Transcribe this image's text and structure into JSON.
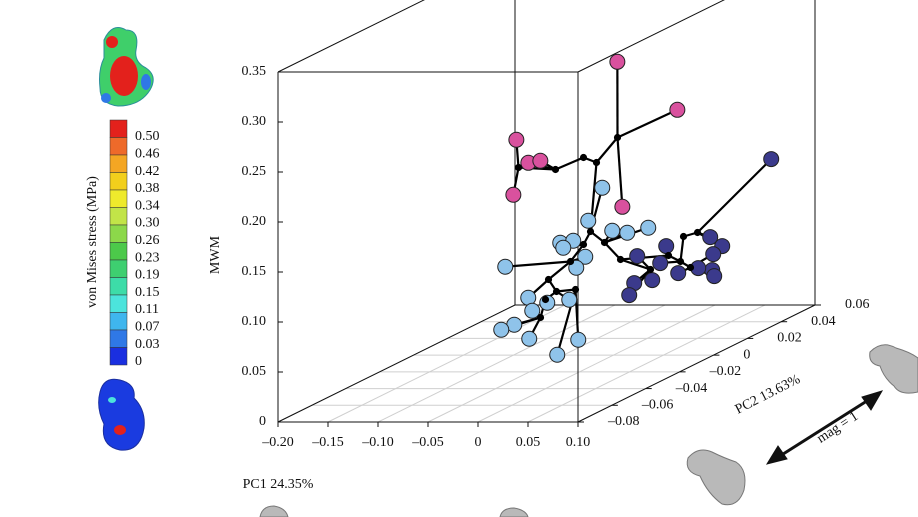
{
  "chart_data": {
    "type": "scatter3d",
    "xlabel": "PC1 24.35%",
    "ylabel": "PC2 13.63%",
    "zlabel": "MWM",
    "xlim": [
      -0.2,
      0.1
    ],
    "xticks": [
      {
        "value": -0.2,
        "label": "–0.20"
      },
      {
        "value": -0.15,
        "label": "–0.15"
      },
      {
        "value": -0.1,
        "label": "–0.10"
      },
      {
        "value": -0.05,
        "label": "–0.05"
      },
      0,
      0.05,
      {
        "value": 0.1,
        "label": "0.10"
      }
    ],
    "ylim": [
      -0.08,
      0.06
    ],
    "yticks": [
      {
        "value": -0.08,
        "label": "–0.08"
      },
      {
        "value": -0.06,
        "label": "–0.06"
      },
      {
        "value": -0.04,
        "label": "–0.04"
      },
      {
        "value": -0.02,
        "label": "–0.02"
      },
      0,
      0.02,
      0.04,
      0.06
    ],
    "zlim": [
      0,
      0.35
    ],
    "zticks": [
      0,
      0.05,
      {
        "value": 0.1,
        "label": "0.10"
      },
      0.15,
      {
        "value": 0.2,
        "label": "0.20"
      },
      0.25,
      {
        "value": 0.3,
        "label": "0.30"
      },
      0.35
    ],
    "grid": true,
    "series": [
      {
        "color": "#d9519e",
        "marker": "circle",
        "x": [
          -0.013,
          0.047,
          -0.114,
          -0.102,
          -0.09,
          -0.117,
          -0.008
        ],
        "y": [
          0.01,
          0.01,
          0.01,
          0.01,
          0.01,
          0.01,
          0.01
        ],
        "z": [
          0.285,
          0.237,
          0.207,
          0.184,
          0.186,
          0.152,
          0.14
        ]
      },
      {
        "color": "#8fc3ea",
        "marker": "circle",
        "x": [
          0.065,
          0.051,
          0.111,
          0.09,
          0.075,
          0.023,
          0.036,
          0.026,
          0.048,
          -0.032,
          0.039,
          -0.009,
          0.032,
          0.01,
          -0.005,
          -0.023,
          -0.036,
          -0.008,
          0.02,
          0.041
        ],
        "y": [
          -0.045,
          -0.045,
          -0.045,
          -0.045,
          -0.045,
          -0.045,
          -0.045,
          -0.045,
          -0.045,
          -0.045,
          -0.045,
          -0.045,
          -0.045,
          -0.045,
          -0.045,
          -0.045,
          -0.045,
          -0.045,
          -0.045,
          -0.045
        ],
        "z": [
          0.205,
          0.172,
          0.165,
          0.16,
          0.162,
          0.15,
          0.152,
          0.145,
          0.136,
          0.126,
          0.125,
          0.095,
          0.093,
          0.09,
          0.082,
          0.068,
          0.063,
          0.054,
          0.038,
          0.053
        ]
      },
      {
        "color": "#3b3a8c",
        "marker": "circle",
        "x": [
          0.107,
          0.046,
          0.058,
          0.002,
          0.049,
          -0.027,
          -0.004,
          0.048,
          0.034,
          0.014,
          -0.012,
          -0.03,
          0.05,
          -0.035
        ],
        "y": [
          0.03,
          0.03,
          0.03,
          0.03,
          0.03,
          0.03,
          0.03,
          0.03,
          0.03,
          0.03,
          0.03,
          0.03,
          0.03,
          0.03
        ],
        "z": [
          0.171,
          0.093,
          0.084,
          0.084,
          0.076,
          0.074,
          0.067,
          0.06,
          0.062,
          0.057,
          0.05,
          0.047,
          0.054,
          0.035
        ]
      },
      {
        "color": "#000000",
        "marker": "dot",
        "x": [
          0.021,
          0.0,
          -0.013,
          -0.041,
          -0.078,
          -0.006,
          0.008,
          -0.013,
          -0.026,
          -0.048,
          -0.04,
          -0.051,
          0.087,
          0.101,
          0.072,
          0.084,
          0.094,
          0.054,
          0.024,
          -0.021,
          -0.056
        ],
        "y": [
          -0.01,
          -0.01,
          -0.01,
          -0.01,
          -0.01,
          -0.01,
          -0.01,
          -0.01,
          -0.01,
          -0.01,
          -0.01,
          -0.01,
          -0.01,
          -0.01,
          -0.01,
          -0.01,
          -0.01,
          -0.01,
          -0.01,
          -0.01,
          -0.01
        ],
        "z": [
          0.226,
          0.201,
          0.206,
          0.194,
          0.196,
          0.132,
          0.121,
          0.119,
          0.102,
          0.084,
          0.072,
          0.064,
          0.127,
          0.131,
          0.108,
          0.102,
          0.096,
          0.094,
          0.104,
          0.074,
          0.046
        ]
      }
    ],
    "edges": [
      [
        0,
        0,
        3,
        0
      ],
      [
        0,
        1,
        3,
        0
      ],
      [
        0,
        6,
        3,
        0
      ],
      [
        3,
        0,
        3,
        1
      ],
      [
        3,
        1,
        3,
        2
      ],
      [
        3,
        2,
        3,
        3
      ],
      [
        3,
        3,
        0,
        4
      ],
      [
        3,
        3,
        0,
        3
      ],
      [
        3,
        3,
        3,
        4
      ],
      [
        3,
        4,
        0,
        2
      ],
      [
        3,
        4,
        0,
        5
      ],
      [
        3,
        1,
        3,
        5
      ],
      [
        3,
        5,
        1,
        0
      ],
      [
        3,
        5,
        1,
        1
      ],
      [
        3,
        5,
        3,
        6
      ],
      [
        3,
        6,
        1,
        4
      ],
      [
        3,
        6,
        1,
        3
      ],
      [
        3,
        6,
        1,
        2
      ],
      [
        3,
        5,
        3,
        7
      ],
      [
        3,
        7,
        1,
        6
      ],
      [
        3,
        7,
        1,
        5
      ],
      [
        3,
        7,
        1,
        7
      ],
      [
        3,
        7,
        3,
        8
      ],
      [
        3,
        8,
        1,
        8
      ],
      [
        3,
        8,
        1,
        9
      ],
      [
        3,
        8,
        3,
        9
      ],
      [
        3,
        9,
        1,
        11
      ],
      [
        3,
        9,
        3,
        10
      ],
      [
        3,
        10,
        1,
        12
      ],
      [
        3,
        10,
        3,
        11
      ],
      [
        3,
        11,
        1,
        13
      ],
      [
        3,
        11,
        3,
        20
      ],
      [
        3,
        20,
        1,
        14
      ],
      [
        3,
        20,
        1,
        15
      ],
      [
        3,
        20,
        1,
        16
      ],
      [
        3,
        20,
        1,
        17
      ],
      [
        3,
        10,
        3,
        19
      ],
      [
        3,
        19,
        1,
        18
      ],
      [
        3,
        19,
        1,
        19
      ],
      [
        1,
        10,
        3,
        8
      ],
      [
        3,
        6,
        3,
        18
      ],
      [
        3,
        18,
        3,
        17
      ],
      [
        3,
        17,
        2,
        5
      ],
      [
        3,
        17,
        2,
        10
      ],
      [
        3,
        17,
        2,
        11
      ],
      [
        2,
        13,
        3,
        17
      ],
      [
        3,
        18,
        3,
        14
      ],
      [
        3,
        14,
        2,
        3
      ],
      [
        3,
        14,
        3,
        15
      ],
      [
        3,
        15,
        2,
        6
      ],
      [
        3,
        15,
        3,
        16
      ],
      [
        3,
        16,
        2,
        8
      ],
      [
        3,
        16,
        2,
        7
      ],
      [
        3,
        16,
        2,
        12
      ],
      [
        3,
        16,
        2,
        9
      ],
      [
        3,
        15,
        3,
        12
      ],
      [
        3,
        12,
        3,
        13
      ],
      [
        3,
        13,
        2,
        1
      ],
      [
        3,
        13,
        2,
        0
      ],
      [
        3,
        13,
        2,
        2
      ],
      [
        3,
        16,
        2,
        4
      ]
    ],
    "edge_color": "#000000"
  },
  "colorbar": {
    "label": "von Mises stress (MPa)",
    "ticks": [
      {
        "value": 0.5,
        "label": "0.50"
      },
      0.46,
      0.42,
      0.38,
      0.34,
      {
        "value": 0.3,
        "label": "0.30"
      },
      0.26,
      0.23,
      0.19,
      0.15,
      0.11,
      0.07,
      0.03,
      0
    ],
    "colors": [
      "#e3211c",
      "#ee6a2a",
      "#f4a623",
      "#f2cf1c",
      "#eeea2c",
      "#c2e448",
      "#8cd84a",
      "#4cc94a",
      "#3ecf70",
      "#3ddca8",
      "#4ce4dc",
      "#3fb6ee",
      "#2f78e6",
      "#1a2fe0"
    ]
  },
  "annotation": "mag = 1"
}
